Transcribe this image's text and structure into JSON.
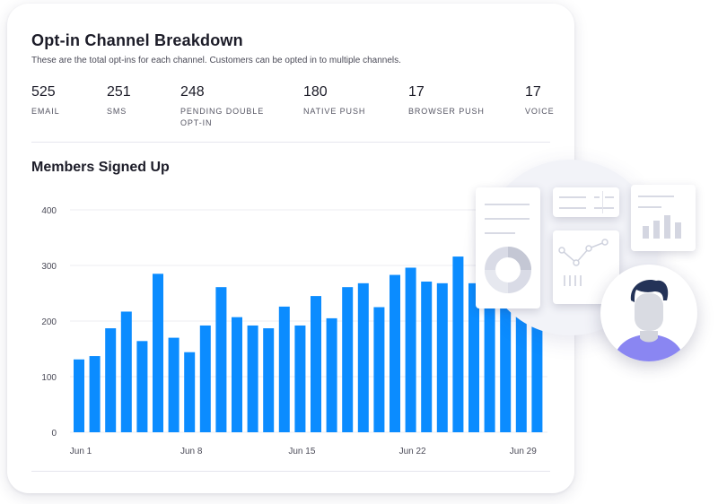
{
  "header": {
    "title": "Opt-in Channel Breakdown",
    "subtitle": "These are the total opt-ins for each channel. Customers can be opted in to multiple channels."
  },
  "stats": [
    {
      "value": "525",
      "label": "EMAIL"
    },
    {
      "value": "251",
      "label": "SMS"
    },
    {
      "value": "248",
      "label": "PENDING DOUBLE OPT-IN"
    },
    {
      "value": "180",
      "label": "NATIVE PUSH"
    },
    {
      "value": "17",
      "label": "BROWSER PUSH"
    },
    {
      "value": "17",
      "label": "VOICE"
    }
  ],
  "chart_title": "Members Signed Up",
  "chart_data": {
    "type": "bar",
    "title": "Members Signed Up",
    "xlabel": "",
    "ylabel": "",
    "categories": [
      "Jun 1",
      "Jun 2",
      "Jun 3",
      "Jun 4",
      "Jun 5",
      "Jun 6",
      "Jun 7",
      "Jun 8",
      "Jun 9",
      "Jun 10",
      "Jun 11",
      "Jun 12",
      "Jun 13",
      "Jun 14",
      "Jun 15",
      "Jun 16",
      "Jun 17",
      "Jun 18",
      "Jun 19",
      "Jun 20",
      "Jun 21",
      "Jun 22",
      "Jun 23",
      "Jun 24",
      "Jun 25",
      "Jun 26",
      "Jun 27",
      "Jun 28",
      "Jun 29",
      "Jun 30"
    ],
    "values": [
      131,
      137,
      187,
      217,
      164,
      285,
      170,
      144,
      192,
      261,
      207,
      192,
      187,
      226,
      192,
      245,
      205,
      261,
      268,
      225,
      283,
      296,
      271,
      268,
      316,
      268,
      250,
      240,
      235,
      230
    ],
    "x_tick_labels": [
      "Jun 1",
      "Jun 8",
      "Jun 15",
      "Jun 22",
      "Jun 29"
    ],
    "y_ticks": [
      0,
      100,
      200,
      300,
      400
    ],
    "ylim": [
      0,
      400
    ],
    "grid": true,
    "bar_color": "#0b8cff"
  },
  "colors": {
    "bar": "#0b8cff",
    "avatar_shirt": "#8a86f2",
    "avatar_hair": "#243358"
  }
}
